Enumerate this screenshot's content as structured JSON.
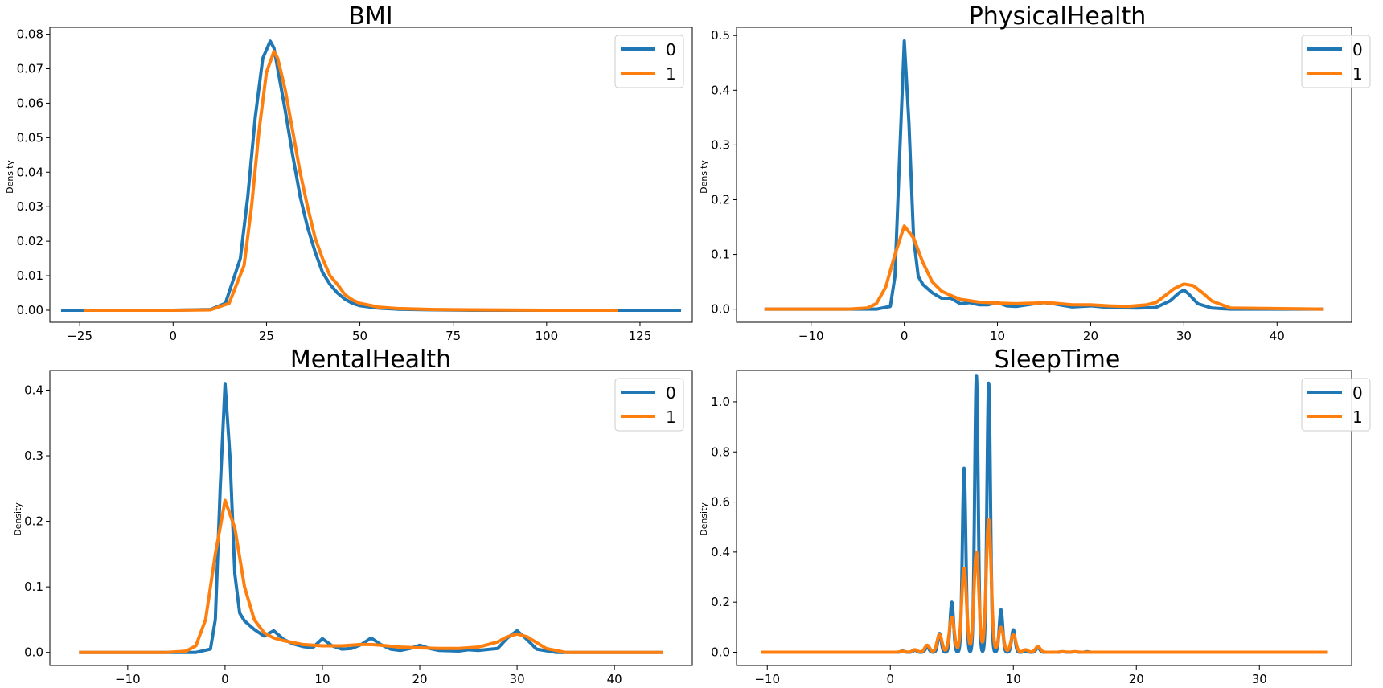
{
  "colors": {
    "series0": "#1f77b4",
    "series1": "#ff7f0e"
  },
  "chart_data": [
    {
      "type": "line",
      "title": "BMI",
      "ylabel": "Density",
      "xlim": [
        -33,
        139
      ],
      "ylim": [
        -0.0035,
        0.082
      ],
      "xticks": [
        -25,
        0,
        25,
        50,
        75,
        100,
        125
      ],
      "xtick_labels": [
        "−25",
        "0",
        "25",
        "50",
        "75",
        "100",
        "125"
      ],
      "yticks": [
        0,
        0.01,
        0.02,
        0.03,
        0.04,
        0.05,
        0.06,
        0.07,
        0.08
      ],
      "ytick_labels": [
        "0.00",
        "0.01",
        "0.02",
        "0.03",
        "0.04",
        "0.05",
        "0.06",
        "0.07",
        "0.08"
      ],
      "legend": {
        "position": "top-right",
        "entries": [
          "0",
          "1"
        ]
      },
      "series": [
        {
          "name": "0",
          "x": [
            -30,
            0,
            10,
            14,
            18,
            20,
            22,
            24,
            26,
            27,
            28,
            30,
            32,
            34,
            36,
            38,
            40,
            42,
            44,
            46,
            48,
            50,
            55,
            60,
            70,
            80,
            100,
            136
          ],
          "y": [
            0,
            0,
            0.0002,
            0.002,
            0.015,
            0.033,
            0.056,
            0.073,
            0.078,
            0.076,
            0.07,
            0.058,
            0.045,
            0.033,
            0.024,
            0.017,
            0.011,
            0.0075,
            0.005,
            0.0032,
            0.002,
            0.0013,
            0.0006,
            0.0003,
            0.0001,
            0,
            0,
            0
          ]
        },
        {
          "name": "1",
          "x": [
            -24,
            0,
            10,
            15,
            19,
            21,
            23,
            25,
            27,
            28,
            30,
            32,
            34,
            36,
            38,
            40,
            42,
            44,
            46,
            48,
            50,
            55,
            60,
            70,
            80,
            100,
            119
          ],
          "y": [
            0,
            0,
            0.0001,
            0.002,
            0.013,
            0.03,
            0.052,
            0.069,
            0.075,
            0.073,
            0.064,
            0.052,
            0.04,
            0.03,
            0.021,
            0.015,
            0.01,
            0.0075,
            0.0045,
            0.003,
            0.002,
            0.0009,
            0.0005,
            0.0002,
            0.0001,
            0,
            0
          ]
        }
      ]
    },
    {
      "type": "line",
      "title": "PhysicalHealth",
      "ylabel": "Density",
      "xlim": [
        -18,
        48
      ],
      "ylim": [
        -0.024,
        0.515
      ],
      "xticks": [
        -10,
        0,
        10,
        20,
        30,
        40
      ],
      "xtick_labels": [
        "−10",
        "0",
        "10",
        "20",
        "30",
        "40"
      ],
      "yticks": [
        0,
        0.1,
        0.2,
        0.3,
        0.4,
        0.5
      ],
      "ytick_labels": [
        "0.0",
        "0.1",
        "0.2",
        "0.3",
        "0.4",
        "0.5"
      ],
      "legend": {
        "position": "top-right",
        "entries": [
          "0",
          "1"
        ]
      },
      "series": [
        {
          "name": "0",
          "x": [
            -15,
            -3,
            -1.5,
            -1,
            -0.5,
            0,
            0.5,
            1,
            1.5,
            2,
            3,
            4,
            5,
            6,
            7,
            8,
            9,
            10,
            11,
            12,
            14,
            15,
            16,
            18,
            20,
            22,
            25,
            27,
            28.5,
            29.5,
            30,
            30.5,
            31.5,
            33,
            35,
            45
          ],
          "y": [
            0,
            0,
            0.005,
            0.06,
            0.28,
            0.49,
            0.34,
            0.13,
            0.06,
            0.045,
            0.03,
            0.02,
            0.02,
            0.01,
            0.012,
            0.008,
            0.008,
            0.012,
            0.006,
            0.005,
            0.01,
            0.012,
            0.01,
            0.004,
            0.006,
            0.003,
            0.002,
            0.003,
            0.015,
            0.03,
            0.035,
            0.028,
            0.01,
            0.002,
            0,
            0
          ]
        },
        {
          "name": "1",
          "x": [
            -15,
            -6,
            -4,
            -3,
            -2,
            -1,
            0,
            1,
            2,
            3,
            4,
            5,
            6,
            8,
            10,
            12,
            14,
            15,
            16,
            18,
            20,
            22,
            24,
            26,
            27,
            28,
            29,
            30,
            31,
            32,
            33,
            35,
            45
          ],
          "y": [
            0,
            0,
            0.002,
            0.01,
            0.04,
            0.1,
            0.152,
            0.13,
            0.085,
            0.05,
            0.033,
            0.025,
            0.018,
            0.013,
            0.011,
            0.01,
            0.011,
            0.012,
            0.011,
            0.008,
            0.008,
            0.006,
            0.005,
            0.008,
            0.012,
            0.025,
            0.038,
            0.046,
            0.043,
            0.03,
            0.015,
            0.002,
            0
          ]
        }
      ]
    },
    {
      "type": "line",
      "title": "MentalHealth",
      "ylabel": "Density",
      "xlim": [
        -18,
        48
      ],
      "ylim": [
        -0.02,
        0.43
      ],
      "xticks": [
        -10,
        0,
        10,
        20,
        30,
        40
      ],
      "xtick_labels": [
        "−10",
        "0",
        "10",
        "20",
        "30",
        "40"
      ],
      "yticks": [
        0,
        0.1,
        0.2,
        0.3,
        0.4
      ],
      "ytick_labels": [
        "0.0",
        "0.1",
        "0.2",
        "0.3",
        "0.4"
      ],
      "legend": {
        "position": "top-right",
        "entries": [
          "0",
          "1"
        ]
      },
      "series": [
        {
          "name": "0",
          "x": [
            -15,
            -3,
            -1.5,
            -1,
            -0.5,
            0,
            0.5,
            1,
            1.5,
            2,
            3,
            4,
            5,
            6,
            7,
            8,
            9,
            10,
            11,
            12,
            13,
            14,
            15,
            16,
            17,
            18,
            19,
            20,
            21,
            22,
            24,
            25,
            26,
            28,
            29,
            30,
            31,
            32,
            34,
            45
          ],
          "y": [
            0,
            0,
            0.005,
            0.05,
            0.25,
            0.41,
            0.3,
            0.12,
            0.06,
            0.048,
            0.035,
            0.025,
            0.033,
            0.02,
            0.013,
            0.009,
            0.007,
            0.021,
            0.01,
            0.005,
            0.006,
            0.012,
            0.022,
            0.012,
            0.005,
            0.003,
            0.006,
            0.011,
            0.006,
            0.003,
            0.002,
            0.004,
            0.003,
            0.006,
            0.022,
            0.033,
            0.02,
            0.005,
            0,
            0
          ]
        },
        {
          "name": "1",
          "x": [
            -15,
            -6,
            -4,
            -3,
            -2,
            -1,
            0,
            1,
            2,
            3,
            4,
            5,
            6,
            8,
            10,
            12,
            14,
            15,
            16,
            18,
            20,
            22,
            24,
            26,
            28,
            29,
            30,
            31,
            32,
            33,
            35,
            45
          ],
          "y": [
            0,
            0,
            0.002,
            0.01,
            0.05,
            0.15,
            0.232,
            0.19,
            0.1,
            0.05,
            0.03,
            0.022,
            0.018,
            0.012,
            0.01,
            0.01,
            0.012,
            0.012,
            0.011,
            0.008,
            0.007,
            0.006,
            0.006,
            0.008,
            0.016,
            0.024,
            0.028,
            0.024,
            0.015,
            0.006,
            0,
            0
          ]
        }
      ]
    },
    {
      "type": "line",
      "title": "SleepTime",
      "ylabel": "Density",
      "xlim": [
        -12.5,
        37.5
      ],
      "ylim": [
        -0.053,
        1.125
      ],
      "xticks": [
        -10,
        0,
        10,
        20,
        30
      ],
      "xtick_labels": [
        "−10",
        "0",
        "10",
        "20",
        "30"
      ],
      "yticks": [
        0,
        0.2,
        0.4,
        0.6,
        0.8,
        1.0
      ],
      "ytick_labels": [
        "0.0",
        "0.2",
        "0.4",
        "0.6",
        "0.8",
        "1.0"
      ],
      "legend": {
        "position": "top-right",
        "entries": [
          "0",
          "1"
        ]
      },
      "series": [
        {
          "name": "0",
          "peaks": [
            [
              1,
              0.005
            ],
            [
              2,
              0.008
            ],
            [
              3,
              0.022
            ],
            [
              4,
              0.075
            ],
            [
              5,
              0.2
            ],
            [
              6,
              0.735
            ],
            [
              7,
              1.105
            ],
            [
              8,
              1.075
            ],
            [
              9,
              0.17
            ],
            [
              10,
              0.09
            ],
            [
              11,
              0.005
            ],
            [
              12,
              0.02
            ],
            [
              14,
              0.002
            ],
            [
              15,
              0.002
            ],
            [
              16,
              0.002
            ]
          ],
          "bandwidth": 0.14,
          "xrange": [
            -10.5,
            35.5
          ]
        },
        {
          "name": "1",
          "peaks": [
            [
              1,
              0.004
            ],
            [
              2,
              0.01
            ],
            [
              3,
              0.028
            ],
            [
              4,
              0.07
            ],
            [
              5,
              0.14
            ],
            [
              6,
              0.335
            ],
            [
              7,
              0.4
            ],
            [
              8,
              0.53
            ],
            [
              9,
              0.1
            ],
            [
              10,
              0.07
            ],
            [
              11,
              0.01
            ],
            [
              12,
              0.022
            ],
            [
              14,
              0.002
            ],
            [
              15,
              0.002
            ]
          ],
          "bandwidth": 0.2,
          "xrange": [
            -10.5,
            35.5
          ]
        }
      ]
    }
  ]
}
